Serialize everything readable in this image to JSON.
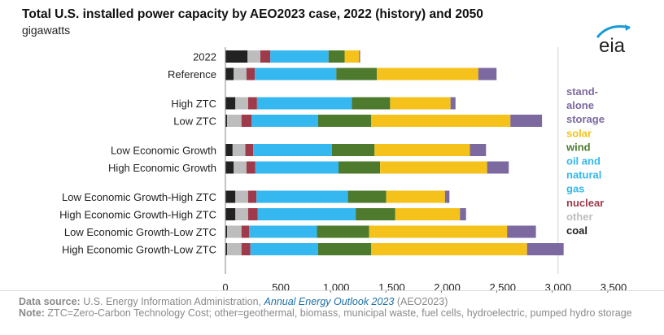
{
  "header": {
    "title": "Total U.S. installed power capacity by AEO2023 case, 2022 (history) and 2050",
    "subtitle": "gigawatts"
  },
  "logo": {
    "text": "eia",
    "icon": "eia-logo-icon"
  },
  "chart_data": {
    "type": "bar",
    "orientation": "horizontal",
    "stacked": true,
    "categories": [
      "2022",
      "Reference",
      "High ZTC",
      "Low ZTC",
      "Low Economic Growth",
      "High Economic Growth",
      "Low Economic Growth-High ZTC",
      "High Economic Growth-High ZTC",
      "Low Economic Growth-Low ZTC",
      "High Economic Growth-Low ZTC"
    ],
    "group_gaps_after": [
      1,
      3,
      5
    ],
    "series": [
      {
        "name": "coal",
        "color": "#222222",
        "values": [
          200,
          75,
          90,
          15,
          65,
          75,
          90,
          90,
          15,
          15
        ]
      },
      {
        "name": "other",
        "color": "#bdbdbd",
        "values": [
          115,
          115,
          115,
          130,
          115,
          115,
          115,
          115,
          130,
          130
        ]
      },
      {
        "name": "nuclear",
        "color": "#9e3a4a",
        "values": [
          90,
          75,
          80,
          90,
          70,
          80,
          75,
          85,
          70,
          80
        ]
      },
      {
        "name": "oil and natural gas",
        "color": "#35b8ef",
        "values": [
          525,
          735,
          855,
          600,
          710,
          750,
          825,
          885,
          610,
          610
        ]
      },
      {
        "name": "wind",
        "color": "#4d7a2d",
        "values": [
          145,
          365,
          345,
          480,
          385,
          375,
          345,
          355,
          470,
          480
        ]
      },
      {
        "name": "solar",
        "color": "#f5c21b",
        "values": [
          130,
          915,
          545,
          1255,
          860,
          965,
          530,
          585,
          1245,
          1405
        ]
      },
      {
        "name": "stand-alone storage",
        "color": "#7b69a0",
        "values": [
          10,
          165,
          45,
          285,
          145,
          195,
          40,
          55,
          260,
          330
        ]
      }
    ],
    "legend": {
      "placement": "right",
      "lines": [
        {
          "text": "stand-",
          "series": "stand-alone storage"
        },
        {
          "text": "alone",
          "series": "stand-alone storage"
        },
        {
          "text": "storage",
          "series": "stand-alone storage"
        },
        {
          "text": "solar",
          "series": "solar"
        },
        {
          "text": "wind",
          "series": "wind"
        },
        {
          "text": "oil and",
          "series": "oil and natural gas"
        },
        {
          "text": "natural",
          "series": "oil and natural gas"
        },
        {
          "text": "gas",
          "series": "oil and natural gas"
        },
        {
          "text": "nuclear",
          "series": "nuclear"
        },
        {
          "text": "other",
          "series": "other"
        },
        {
          "text": "coal",
          "series": "coal"
        }
      ]
    },
    "xlim": [
      0,
      3500
    ],
    "xticks": [
      0,
      500,
      1000,
      1500,
      2000,
      2500,
      3000,
      3500
    ],
    "xtick_labels": [
      "0",
      "500",
      "1,000",
      "1,500",
      "2,000",
      "2,500",
      "3,000",
      "3,500"
    ],
    "grid": {
      "x": true,
      "only_at": [
        3000
      ]
    }
  },
  "footer": {
    "source_label": "Data source:",
    "source_text": " U.S. Energy Information Administration, ",
    "source_pub": "Annual Energy Outlook 2023",
    "source_tail": " (AEO2023)",
    "note_label": "Note:",
    "note_text": " ZTC=Zero-Carbon Technology Cost; other=geothermal, biomass, municipal waste, fuel cells, hydroelectric, pumped hydro storage"
  }
}
